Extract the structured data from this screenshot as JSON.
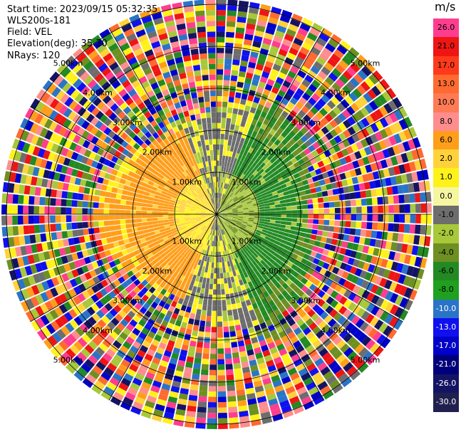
{
  "header": {
    "start_time": "Start time: 2023/09/15 05:32:35",
    "instrument": "WLS200s-181",
    "field": "Field: VEL",
    "elevation": "Elevation(deg): 35.30",
    "nrays": "NRays: 120"
  },
  "chart_data": {
    "type": "heatmap",
    "subtype": "polar-ppi",
    "rays": 120,
    "range_rings_km": [
      "1.00km",
      "2.00km",
      "3.00km",
      "4.00km",
      "5.00km"
    ],
    "colorbar": {
      "unit": "m/s",
      "ticks": [
        "26.0",
        "21.0",
        "17.0",
        "13.0",
        "10.0",
        "8.0",
        "6.0",
        "2.0",
        "1.0",
        "0.0",
        "-1.0",
        "-2.0",
        "-4.0",
        "-6.0",
        "-8.0",
        "-10.0",
        "-13.0",
        "-17.0",
        "-21.0",
        "-26.0",
        "-30.0"
      ],
      "colors": [
        "#ff3d8f",
        "#ee1515",
        "#ff3a1a",
        "#ff6a30",
        "#ff7b55",
        "#ff8d8d",
        "#ff9e1a",
        "#ffd23a",
        "#fff21a",
        "#f6f6a0",
        "#6d6d6d",
        "#a8c83a",
        "#6e8f22",
        "#238a23",
        "#1fa01f",
        "#2a74c8",
        "#1010ee",
        "#0000c8",
        "#00007a",
        "#141464",
        "#202050"
      ]
    }
  }
}
